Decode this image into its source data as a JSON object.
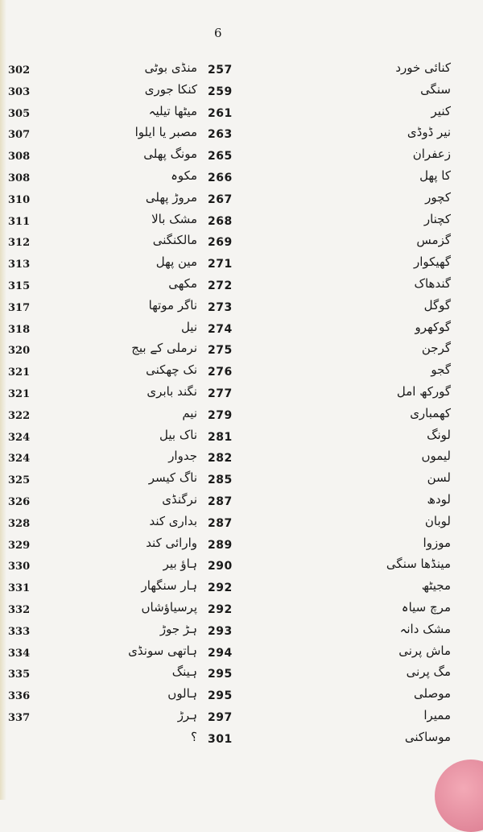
{
  "page_number": "6",
  "rows": [
    {
      "right_word": "کنائی خورد",
      "right_page": "257",
      "left_word": "منڈی بوٹی",
      "left_page": "302"
    },
    {
      "right_word": "سنگی",
      "right_page": "259",
      "left_word": "کنکا جوری",
      "left_page": "303"
    },
    {
      "right_word": "کنیر",
      "right_page": "261",
      "left_word": "میٹھا تیلیہ",
      "left_page": "305"
    },
    {
      "right_word": "نیر ڈوڈی",
      "right_page": "263",
      "left_word": "مصبر یا ایلوا",
      "left_page": "307"
    },
    {
      "right_word": "زعفران",
      "right_page": "265",
      "left_word": "مونگ پھلی",
      "left_page": "308"
    },
    {
      "right_word": "کا پھل",
      "right_page": "266",
      "left_word": "مکوہ",
      "left_page": "308"
    },
    {
      "right_word": "کچور",
      "right_page": "267",
      "left_word": "مروڑ پھلی",
      "left_page": "310"
    },
    {
      "right_word": "کچنار",
      "right_page": "268",
      "left_word": "مشک بالا",
      "left_page": "311"
    },
    {
      "right_word": "گزمس",
      "right_page": "269",
      "left_word": "مالکنگنی",
      "left_page": "312"
    },
    {
      "right_word": "گھیکوار",
      "right_page": "271",
      "left_word": "مین پھل",
      "left_page": "313"
    },
    {
      "right_word": "گندھاک",
      "right_page": "272",
      "left_word": "مکھی",
      "left_page": "315"
    },
    {
      "right_word": "گوگل",
      "right_page": "273",
      "left_word": "ناگر موتھا",
      "left_page": "317"
    },
    {
      "right_word": "گوکھرو",
      "right_page": "274",
      "left_word": "نیل",
      "left_page": "318"
    },
    {
      "right_word": "گرجن",
      "right_page": "275",
      "left_word": "نرملی کے بیج",
      "left_page": "320"
    },
    {
      "right_word": "گجو",
      "right_page": "276",
      "left_word": "نک چھکنی",
      "left_page": "321"
    },
    {
      "right_word": "گورکھ امل",
      "right_page": "277",
      "left_word": "نگند بابری",
      "left_page": "321"
    },
    {
      "right_word": "کھمباری",
      "right_page": "279",
      "left_word": "نیم",
      "left_page": "322"
    },
    {
      "right_word": "لونگ",
      "right_page": "281",
      "left_word": "ناک بیل",
      "left_page": "324"
    },
    {
      "right_word": "لیموں",
      "right_page": "282",
      "left_word": "جدوار",
      "left_page": "324"
    },
    {
      "right_word": "لسن",
      "right_page": "285",
      "left_word": "ناگ کیسر",
      "left_page": "325"
    },
    {
      "right_word": "لودھ",
      "right_page": "287",
      "left_word": "نرگنڈی",
      "left_page": "326"
    },
    {
      "right_word": "لوبان",
      "right_page": "287",
      "left_word": "بداری کند",
      "left_page": "328"
    },
    {
      "right_word": "موزوا",
      "right_page": "289",
      "left_word": "وارائی کند",
      "left_page": "329"
    },
    {
      "right_word": "مینڈھا سنگی",
      "right_page": "290",
      "left_word": "ہاؤ بیر",
      "left_page": "330"
    },
    {
      "right_word": "مجیٹھ",
      "right_page": "292",
      "left_word": "ہار سنگھار",
      "left_page": "331"
    },
    {
      "right_word": "مرچ سیاہ",
      "right_page": "292",
      "left_word": "پرسیاؤشاں",
      "left_page": "332"
    },
    {
      "right_word": "مشک دانہ",
      "right_page": "293",
      "left_word": "ہڑ جوڑ",
      "left_page": "333"
    },
    {
      "right_word": "ماش پرنی",
      "right_page": "294",
      "left_word": "ہاتھی سونڈی",
      "left_page": "334"
    },
    {
      "right_word": "مگ پرنی",
      "right_page": "295",
      "left_word": "ہینگ",
      "left_page": "335"
    },
    {
      "right_word": "موصلی",
      "right_page": "295",
      "left_word": "ہالوں",
      "left_page": "336"
    },
    {
      "right_word": "ممیرا",
      "right_page": "297",
      "left_word": "ہرڑ",
      "left_page": "337"
    },
    {
      "right_word": "موساکنی",
      "right_page": "301",
      "left_word": "؟",
      "left_page": ""
    }
  ]
}
